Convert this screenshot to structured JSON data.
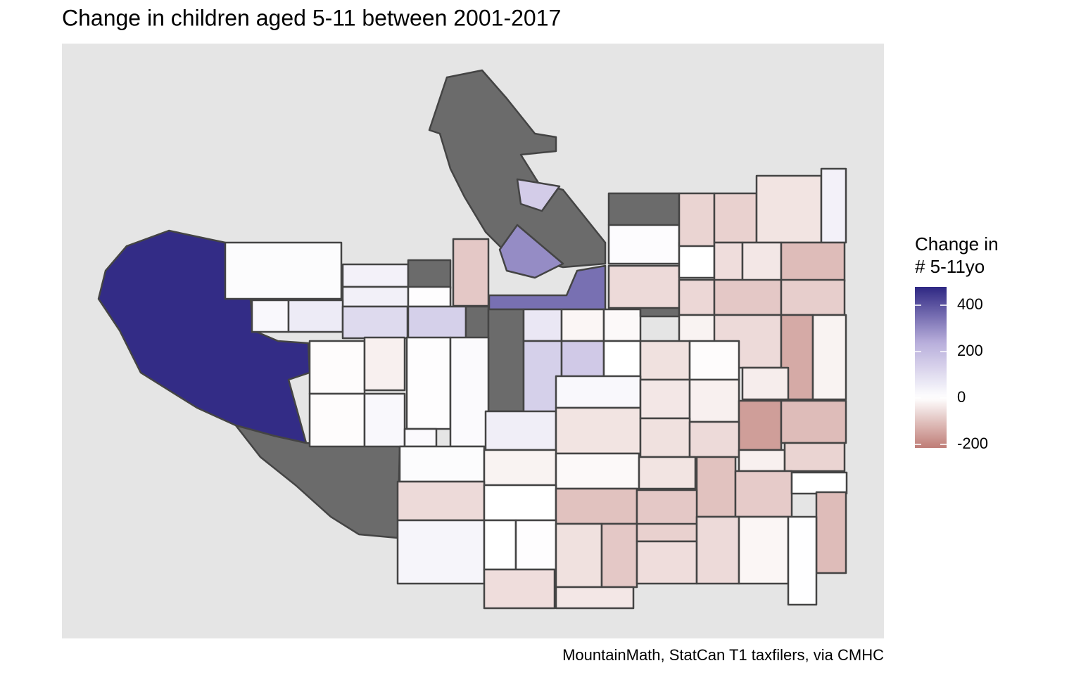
{
  "chart_data": {
    "type": "choropleth",
    "title": "Change in children aged 5-11 between 2001-2017",
    "legend_title": [
      "Change in",
      "# 5-11yo"
    ],
    "caption": "MountainMath, StatCan T1 taxfilers, via CMHC",
    "lim": [
      -215,
      479
    ],
    "ticks": [
      400,
      200,
      0,
      -200
    ],
    "colors": {
      "low": "#bf7c76",
      "mid": "#ffffff",
      "mid_high": "#b8aedb",
      "high": "#2e2783",
      "na": "#6b6b6b"
    },
    "values": [
      470,
      null,
      null,
      150,
      300,
      350,
      null,
      10,
      40,
      45,
      null,
      5,
      -90,
      20,
      60,
      110,
      140,
      null,
      null,
      70,
      -15,
      -10,
      null,
      -60,
      8,
      0,
      -70,
      -75,
      -45,
      40,
      -55,
      -40,
      -110,
      -65,
      -90,
      -80,
      -20,
      -60,
      -140,
      -20,
      -30,
      -5,
      -25,
      5,
      15,
      140,
      160,
      0,
      -50,
      -5,
      -5,
      20,
      15,
      50,
      20,
      -45,
      -40,
      -25,
      -160,
      -110,
      -50,
      -60,
      -25,
      -70,
      10,
      -20,
      -10,
      -45,
      -100,
      -85,
      0,
      -60,
      0,
      -100,
      -90,
      -110,
      30,
      0,
      5,
      -50,
      -90,
      -75,
      -55,
      -60,
      -15,
      2,
      -55,
      -40
    ]
  }
}
